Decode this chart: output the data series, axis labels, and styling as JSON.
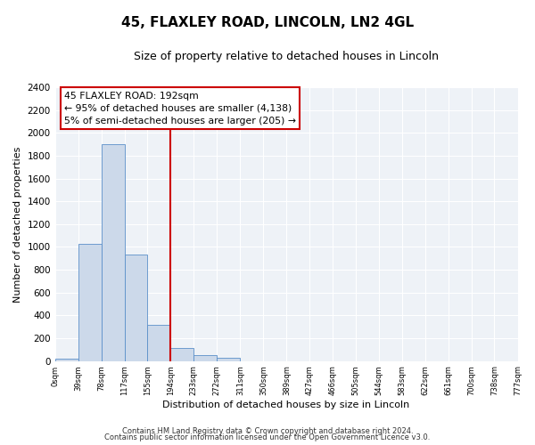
{
  "title": "45, FLAXLEY ROAD, LINCOLN, LN2 4GL",
  "subtitle": "Size of property relative to detached houses in Lincoln",
  "xlabel": "Distribution of detached houses by size in Lincoln",
  "ylabel": "Number of detached properties",
  "bar_edges": [
    0,
    39,
    78,
    117,
    155,
    194,
    233,
    272,
    311,
    350,
    389,
    427,
    466,
    505,
    544,
    583,
    622,
    661,
    700,
    738,
    777
  ],
  "bar_heights": [
    20,
    1030,
    1900,
    930,
    320,
    110,
    55,
    30,
    0,
    0,
    0,
    0,
    0,
    0,
    0,
    0,
    0,
    0,
    0,
    0
  ],
  "bar_color": "#ccd9ea",
  "bar_edge_color": "#5b8fc9",
  "property_line_x": 194,
  "property_line_color": "#cc0000",
  "ylim": [
    0,
    2400
  ],
  "yticks": [
    0,
    200,
    400,
    600,
    800,
    1000,
    1200,
    1400,
    1600,
    1800,
    2000,
    2200,
    2400
  ],
  "annotation_title": "45 FLAXLEY ROAD: 192sqm",
  "annotation_line1": "← 95% of detached houses are smaller (4,138)",
  "annotation_line2": "5% of semi-detached houses are larger (205) →",
  "footer_line1": "Contains HM Land Registry data © Crown copyright and database right 2024.",
  "footer_line2": "Contains public sector information licensed under the Open Government Licence v3.0.",
  "bg_color": "#eef2f7",
  "tick_labels": [
    "0sqm",
    "39sqm",
    "78sqm",
    "117sqm",
    "155sqm",
    "194sqm",
    "233sqm",
    "272sqm",
    "311sqm",
    "350sqm",
    "389sqm",
    "427sqm",
    "466sqm",
    "505sqm",
    "544sqm",
    "583sqm",
    "622sqm",
    "661sqm",
    "700sqm",
    "738sqm",
    "777sqm"
  ]
}
